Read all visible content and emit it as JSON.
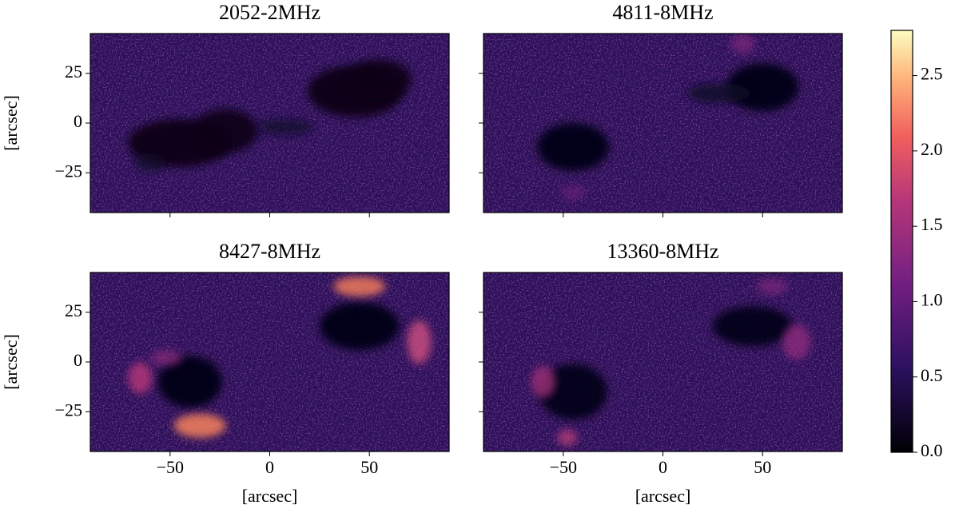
{
  "chart_data": {
    "type": "image",
    "xlabel": "[arcsec]",
    "ylabel": "[arcsec]",
    "xlim": [
      -90,
      90
    ],
    "ylim": [
      -45,
      45
    ],
    "xticks": [
      {
        "value": -50,
        "label": "−50"
      },
      0,
      50
    ],
    "yticks": [
      {
        "value": -25,
        "label": "−25"
      },
      0,
      25
    ],
    "panels": [
      {
        "title": "2052-2MHz"
      },
      {
        "title": "4811-8MHz"
      },
      {
        "title": "8427-8MHz"
      },
      {
        "title": "13360-8MHz"
      }
    ],
    "colorbar": {
      "colormap": "magma",
      "lim": [
        0,
        2.8
      ],
      "ticks": [
        {
          "value": 0,
          "label": "0.0"
        },
        {
          "value": 0.5,
          "label": "0.5"
        },
        {
          "value": 1,
          "label": "1.0"
        },
        {
          "value": 1.5,
          "label": "1.5"
        },
        {
          "value": 2,
          "label": "2.0"
        },
        {
          "value": 2.5,
          "label": "2.5"
        }
      ]
    }
  }
}
